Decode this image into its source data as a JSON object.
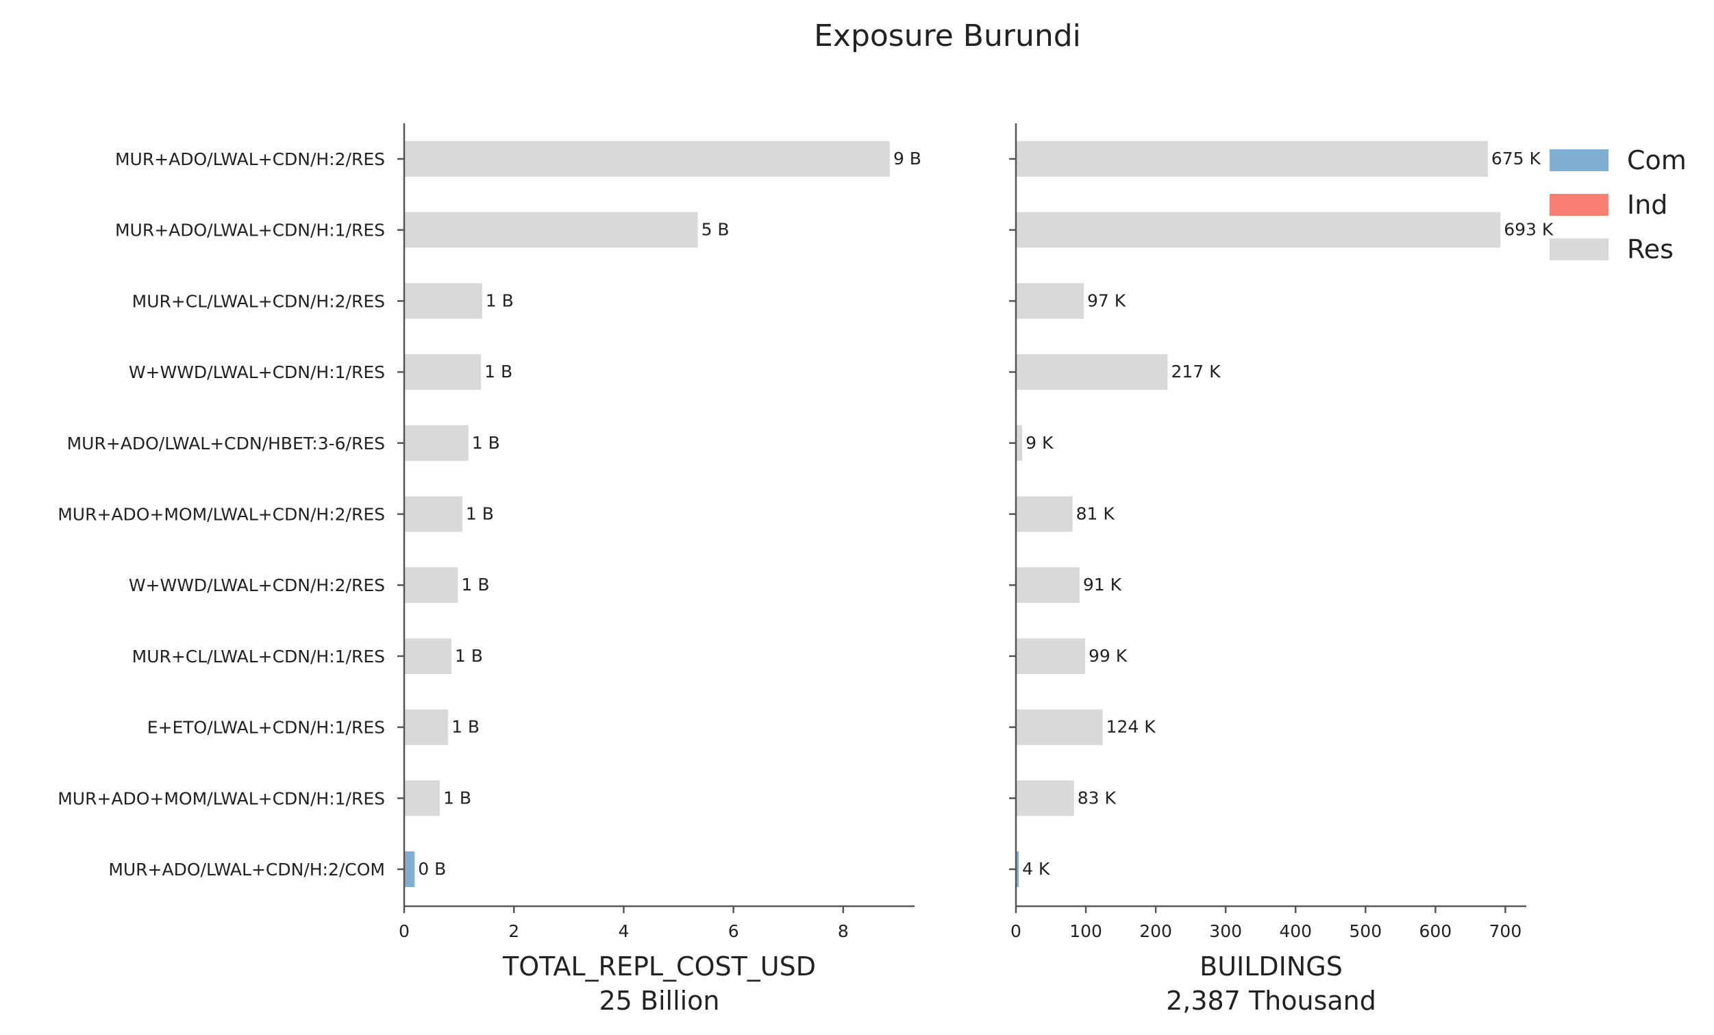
{
  "chart_data": {
    "type": "bar",
    "orientation": "horizontal",
    "title": "Exposure Burundi",
    "colors": {
      "Com": "#7fafd3",
      "Ind": "#fa8072",
      "Res": "#d9d9d9"
    },
    "legend": {
      "placement": "top-right",
      "entries": [
        "Com",
        "Ind",
        "Res"
      ]
    },
    "categories": [
      "MUR+ADO/LWAL+CDN/H:2/RES",
      "MUR+ADO/LWAL+CDN/H:1/RES",
      "MUR+CL/LWAL+CDN/H:2/RES",
      "W+WWD/LWAL+CDN/H:1/RES",
      "MUR+ADO/LWAL+CDN/HBET:3-6/RES",
      "MUR+ADO+MOM/LWAL+CDN/H:2/RES",
      "W+WWD/LWAL+CDN/H:2/RES",
      "MUR+CL/LWAL+CDN/H:1/RES",
      "E+ETO/LWAL+CDN/H:1/RES",
      "MUR+ADO+MOM/LWAL+CDN/H:1/RES",
      "MUR+ADO/LWAL+CDN/H:2/COM"
    ],
    "occupancy": [
      "Res",
      "Res",
      "Res",
      "Res",
      "Res",
      "Res",
      "Res",
      "Res",
      "Res",
      "Res",
      "Com"
    ],
    "panels": [
      {
        "xlabel": "TOTAL_REPL_COST_USD",
        "xlabel_sub": "25 Billion",
        "xlim": [
          0,
          9.3
        ],
        "ticks": [
          0,
          2,
          4,
          6,
          8
        ],
        "tick_labels": [
          "0",
          "2",
          "4",
          "6",
          "8"
        ],
        "values": [
          8.85,
          5.35,
          1.42,
          1.4,
          1.17,
          1.06,
          0.98,
          0.86,
          0.8,
          0.65,
          0.19
        ],
        "value_labels": [
          "9 B",
          "5 B",
          "1 B",
          "1 B",
          "1 B",
          "1 B",
          "1 B",
          "1 B",
          "1 B",
          "1 B",
          "0 B"
        ]
      },
      {
        "xlabel": "BUILDINGS",
        "xlabel_sub": "2,387 Thousand",
        "xlim": [
          0,
          730
        ],
        "ticks": [
          0,
          100,
          200,
          300,
          400,
          500,
          600,
          700
        ],
        "tick_labels": [
          "0",
          "100",
          "200",
          "300",
          "400",
          "500",
          "600",
          "700"
        ],
        "values": [
          675,
          693,
          97,
          217,
          9,
          81,
          91,
          99,
          124,
          83,
          4
        ],
        "value_labels": [
          "675 K",
          "693 K",
          "97 K",
          "217 K",
          "9 K",
          "81 K",
          "91 K",
          "99 K",
          "124 K",
          "83 K",
          "4 K"
        ]
      }
    ]
  }
}
